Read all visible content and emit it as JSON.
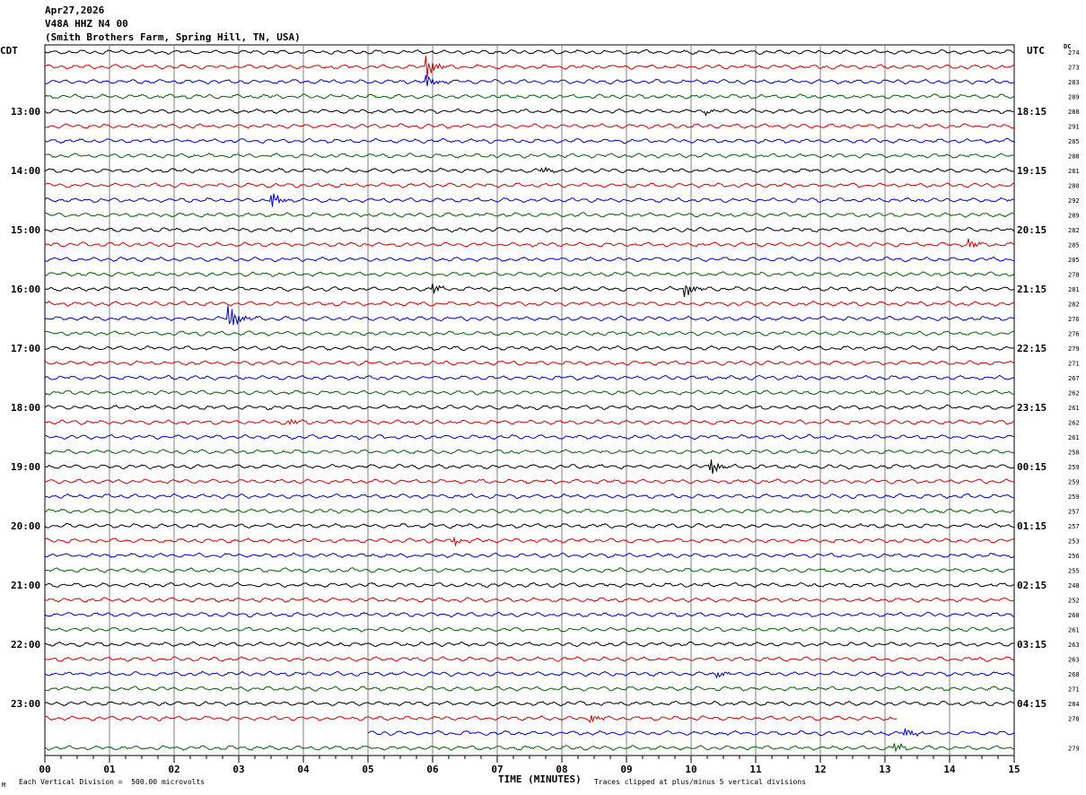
{
  "header": {
    "date": "Apr27,2026",
    "station": "V48A HHZ N4 00",
    "location": "(Smith Brothers Farm, Spring Hill, TN, USA)"
  },
  "left_tz": "CDT",
  "right_tz": "UTC",
  "dc_label": "DC",
  "footer": {
    "scale": "Each Vertical Division =  500.00 microvolts",
    "clip": "Traces clipped at plus/minus 5 vertical divisions",
    "corner_mark": "M"
  },
  "chart_data": {
    "type": "line",
    "title": "",
    "xlabel": "TIME (MINUTES)",
    "ylabel": "",
    "x_ticks": [
      "00",
      "01",
      "02",
      "03",
      "04",
      "05",
      "06",
      "07",
      "08",
      "09",
      "10",
      "11",
      "12",
      "13",
      "14",
      "15"
    ],
    "xlim": [
      0,
      15
    ],
    "grid": true,
    "trace_colors": [
      "#000000",
      "#d40000",
      "#0000cc",
      "#006400"
    ],
    "left_hour_labels": [
      "13:00",
      "14:00",
      "15:00",
      "16:00",
      "17:00",
      "18:00",
      "19:00",
      "20:00",
      "21:00",
      "22:00",
      "23:00"
    ],
    "right_hour_labels": [
      "18:15",
      "19:15",
      "20:15",
      "21:15",
      "22:15",
      "23:15",
      "00:15",
      "01:15",
      "02:15",
      "03:15",
      "04:15"
    ],
    "dc_values": [
      274,
      273,
      283,
      289,
      288,
      291,
      285,
      288,
      281,
      280,
      292,
      289,
      282,
      285,
      285,
      278,
      281,
      282,
      276,
      276,
      279,
      271,
      267,
      262,
      261,
      262,
      261,
      258,
      259,
      259,
      259,
      257,
      257,
      253,
      256,
      255,
      248,
      252,
      260,
      261,
      263,
      263,
      268,
      271,
      284,
      278,
      "",
      279
    ],
    "last_partial_trace": {
      "row": 45,
      "end_minute": 13.2
    },
    "gap_trace": {
      "row": 46,
      "start_minute": 5.0
    },
    "events": [
      {
        "row": 1,
        "minute": 5.9,
        "amp": 14
      },
      {
        "row": 2,
        "minute": 5.9,
        "amp": 8
      },
      {
        "row": 4,
        "minute": 10.2,
        "amp": 3
      },
      {
        "row": 8,
        "minute": 7.7,
        "amp": 4
      },
      {
        "row": 10,
        "minute": 3.5,
        "amp": 10
      },
      {
        "row": 13,
        "minute": 14.3,
        "amp": 5
      },
      {
        "row": 16,
        "minute": 6.0,
        "amp": 6
      },
      {
        "row": 16,
        "minute": 9.9,
        "amp": 10
      },
      {
        "row": 18,
        "minute": 2.85,
        "amp": 16
      },
      {
        "row": 25,
        "minute": 3.8,
        "amp": 3
      },
      {
        "row": 28,
        "minute": 10.3,
        "amp": 10
      },
      {
        "row": 33,
        "minute": 6.3,
        "amp": 5
      },
      {
        "row": 42,
        "minute": 10.4,
        "amp": 4
      },
      {
        "row": 45,
        "minute": 8.45,
        "amp": 5
      },
      {
        "row": 46,
        "minute": 13.3,
        "amp": 6
      },
      {
        "row": 47,
        "minute": 13.15,
        "amp": 5
      }
    ]
  }
}
